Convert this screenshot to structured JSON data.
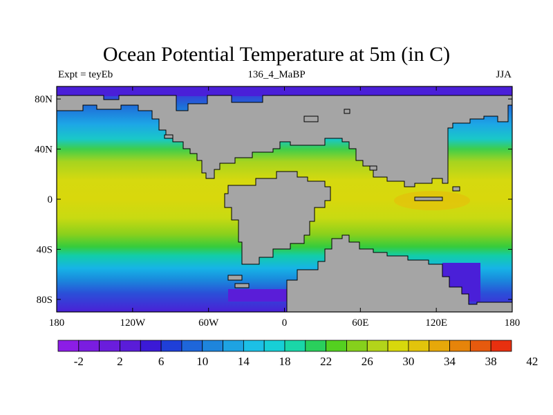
{
  "title": "Ocean Potential Temperature at 5m (in C)",
  "left_label": "Expt = teyEb",
  "center_label": "136_4_MaBP",
  "right_label": "JJA",
  "map": {
    "lon_ticks": [
      "180",
      "120W",
      "60W",
      "0",
      "60E",
      "120E",
      "180"
    ],
    "lat_ticks": [
      "80N",
      "40N",
      "0",
      "40S",
      "80S"
    ],
    "land_color": "#a5a5a5",
    "ocean_bands": [
      {
        "lat": 90,
        "color": "#4a1fd8"
      },
      {
        "lat": 75,
        "color": "#1e6bd8"
      },
      {
        "lat": 60,
        "color": "#1da6e6"
      },
      {
        "lat": 48,
        "color": "#19c8c8"
      },
      {
        "lat": 40,
        "color": "#3fce4a"
      },
      {
        "lat": 30,
        "color": "#a6d41f"
      },
      {
        "lat": 15,
        "color": "#d6d90f"
      },
      {
        "lat": 0,
        "color": "#d8d80c"
      },
      {
        "lat": -15,
        "color": "#c8da12"
      },
      {
        "lat": -28,
        "color": "#8ad01c"
      },
      {
        "lat": -38,
        "color": "#36cc3c"
      },
      {
        "lat": -45,
        "color": "#12cda8"
      },
      {
        "lat": -55,
        "color": "#16b4e6"
      },
      {
        "lat": -65,
        "color": "#1a86dc"
      },
      {
        "lat": -75,
        "color": "#2a50d8"
      },
      {
        "lat": -90,
        "color": "#4a20d6"
      }
    ]
  },
  "colorbar": {
    "colors": [
      "#8c1de6",
      "#7a1de0",
      "#6a1ddc",
      "#5a1dd8",
      "#3b1ad6",
      "#1f3fd8",
      "#1e66da",
      "#1e85dc",
      "#1ea3e2",
      "#1cc0e6",
      "#17cfd6",
      "#1ad6a8",
      "#2acf5c",
      "#54d020",
      "#86d01c",
      "#b3d41a",
      "#d8d80c",
      "#e2c40c",
      "#e6a80a",
      "#e6840a",
      "#e65a0e",
      "#e8300f"
    ],
    "labels": [
      "-2",
      "2",
      "6",
      "10",
      "14",
      "18",
      "22",
      "26",
      "30",
      "34",
      "38",
      "42"
    ]
  }
}
